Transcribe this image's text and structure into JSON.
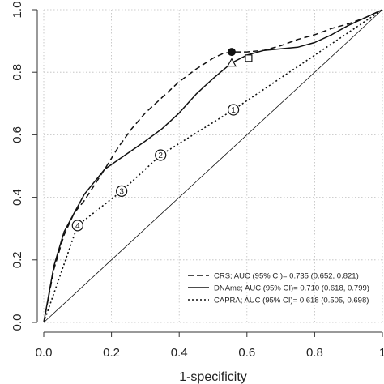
{
  "chart_data": {
    "type": "line",
    "xlabel": "1-specificity",
    "ylabel": "",
    "xlim": [
      0,
      1
    ],
    "ylim": [
      0,
      1
    ],
    "xticks": [
      "0.0",
      "0.2",
      "0.4",
      "0.6",
      "0.8",
      "1"
    ],
    "yticks": [
      "0.0",
      "0.2",
      "0.4",
      "0.6",
      "0.8",
      "1.0"
    ],
    "grid": true,
    "legend_position": "bottom-right",
    "series": [
      {
        "name": "CRS; AUC (95% CI)= 0.735 (0.652, 0.821)",
        "style": "dashed",
        "x": [
          0,
          0.03,
          0.06,
          0.09,
          0.12,
          0.15,
          0.18,
          0.22,
          0.26,
          0.3,
          0.35,
          0.4,
          0.45,
          0.5,
          0.53,
          0.555,
          0.6,
          0.65,
          0.7,
          0.75,
          0.8,
          0.85,
          0.9,
          0.95,
          1.0
        ],
        "y": [
          0,
          0.17,
          0.28,
          0.35,
          0.39,
          0.44,
          0.49,
          0.56,
          0.62,
          0.67,
          0.72,
          0.77,
          0.81,
          0.845,
          0.86,
          0.865,
          0.865,
          0.87,
          0.885,
          0.905,
          0.92,
          0.94,
          0.955,
          0.975,
          1.0
        ]
      },
      {
        "name": "DNAme; AUC (95% CI)= 0.710 (0.618, 0.799)",
        "style": "solid",
        "x": [
          0,
          0.03,
          0.06,
          0.09,
          0.12,
          0.15,
          0.18,
          0.22,
          0.26,
          0.3,
          0.35,
          0.4,
          0.45,
          0.5,
          0.555,
          0.6,
          0.65,
          0.7,
          0.75,
          0.8,
          0.85,
          0.9,
          0.95,
          1.0
        ],
        "y": [
          0,
          0.18,
          0.29,
          0.35,
          0.41,
          0.45,
          0.49,
          0.52,
          0.55,
          0.58,
          0.62,
          0.67,
          0.73,
          0.78,
          0.83,
          0.855,
          0.87,
          0.875,
          0.88,
          0.895,
          0.92,
          0.95,
          0.975,
          1.0
        ]
      },
      {
        "name": "CAPRA; AUC (95% CI)= 0.618 (0.505, 0.698)",
        "style": "dotted",
        "x": [
          0,
          0.1,
          0.23,
          0.345,
          0.56,
          1.0
        ],
        "y": [
          0,
          0.31,
          0.42,
          0.535,
          0.68,
          1.0
        ]
      },
      {
        "name": "",
        "style": "reference",
        "x": [
          0,
          1
        ],
        "y": [
          0,
          1
        ]
      }
    ],
    "markers": [
      {
        "shape": "filled-circle",
        "x": 0.555,
        "y": 0.865,
        "label": ""
      },
      {
        "shape": "triangle",
        "x": 0.555,
        "y": 0.83,
        "label": ""
      },
      {
        "shape": "square",
        "x": 0.605,
        "y": 0.845,
        "label": ""
      },
      {
        "shape": "circle",
        "x": 0.56,
        "y": 0.68,
        "label": "1"
      },
      {
        "shape": "circle",
        "x": 0.345,
        "y": 0.535,
        "label": "2"
      },
      {
        "shape": "circle",
        "x": 0.23,
        "y": 0.42,
        "label": "3"
      },
      {
        "shape": "circle",
        "x": 0.1,
        "y": 0.31,
        "label": "4"
      }
    ]
  }
}
